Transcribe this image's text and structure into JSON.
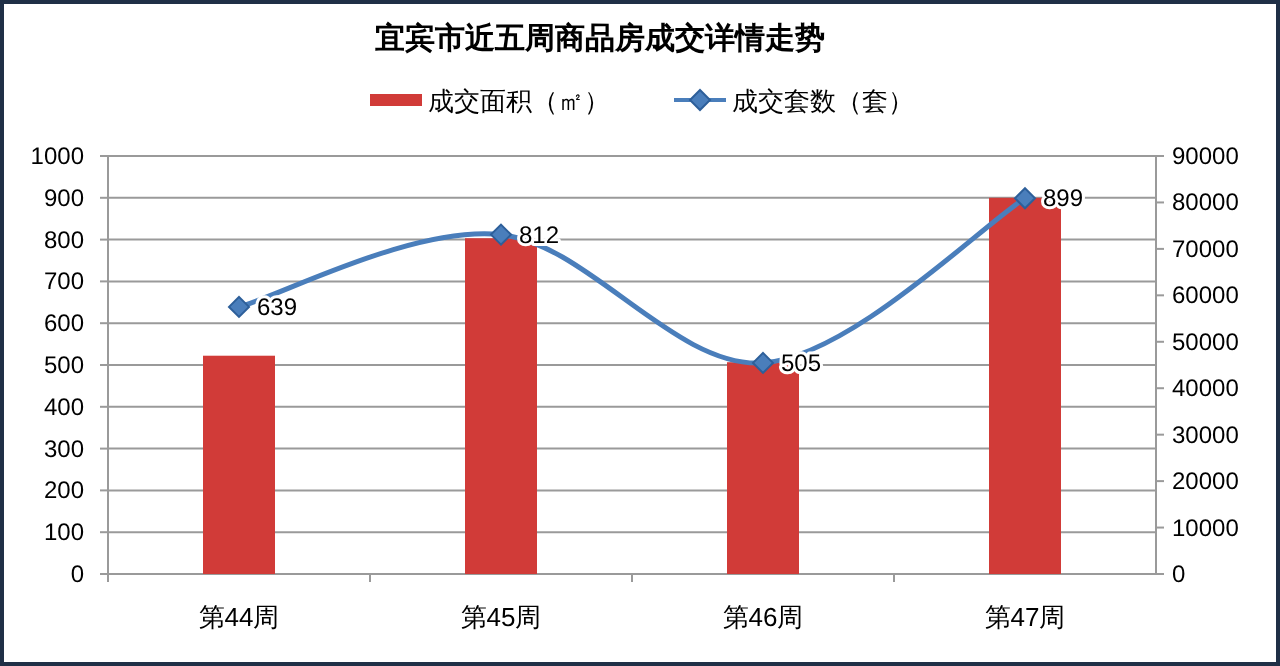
{
  "chart_data": {
    "type": "bar",
    "title": "宜宾市近五周商品房成交详情走势",
    "categories": [
      "第44周",
      "第45周",
      "第46周",
      "第47周"
    ],
    "series": [
      {
        "name": "成交面积（㎡）",
        "axis": "y2",
        "color": "#d13b38",
        "values": [
          47000,
          72300,
          45600,
          81000
        ]
      },
      {
        "name": "成交套数（套）",
        "type": "line",
        "color": "#4a7ebb",
        "marker": "diamond",
        "values": [
          639,
          812,
          505,
          899
        ],
        "value_labels": [
          "639",
          "812",
          "505",
          "899"
        ]
      }
    ],
    "ylim": [
      0,
      1000
    ],
    "yticks": [
      0,
      100,
      200,
      300,
      400,
      500,
      600,
      700,
      800,
      900,
      1000
    ],
    "y2lim": [
      0,
      90000
    ],
    "y2ticks": [
      0,
      10000,
      20000,
      30000,
      40000,
      50000,
      60000,
      70000,
      80000,
      90000
    ],
    "grid": "y",
    "legend": "top"
  }
}
